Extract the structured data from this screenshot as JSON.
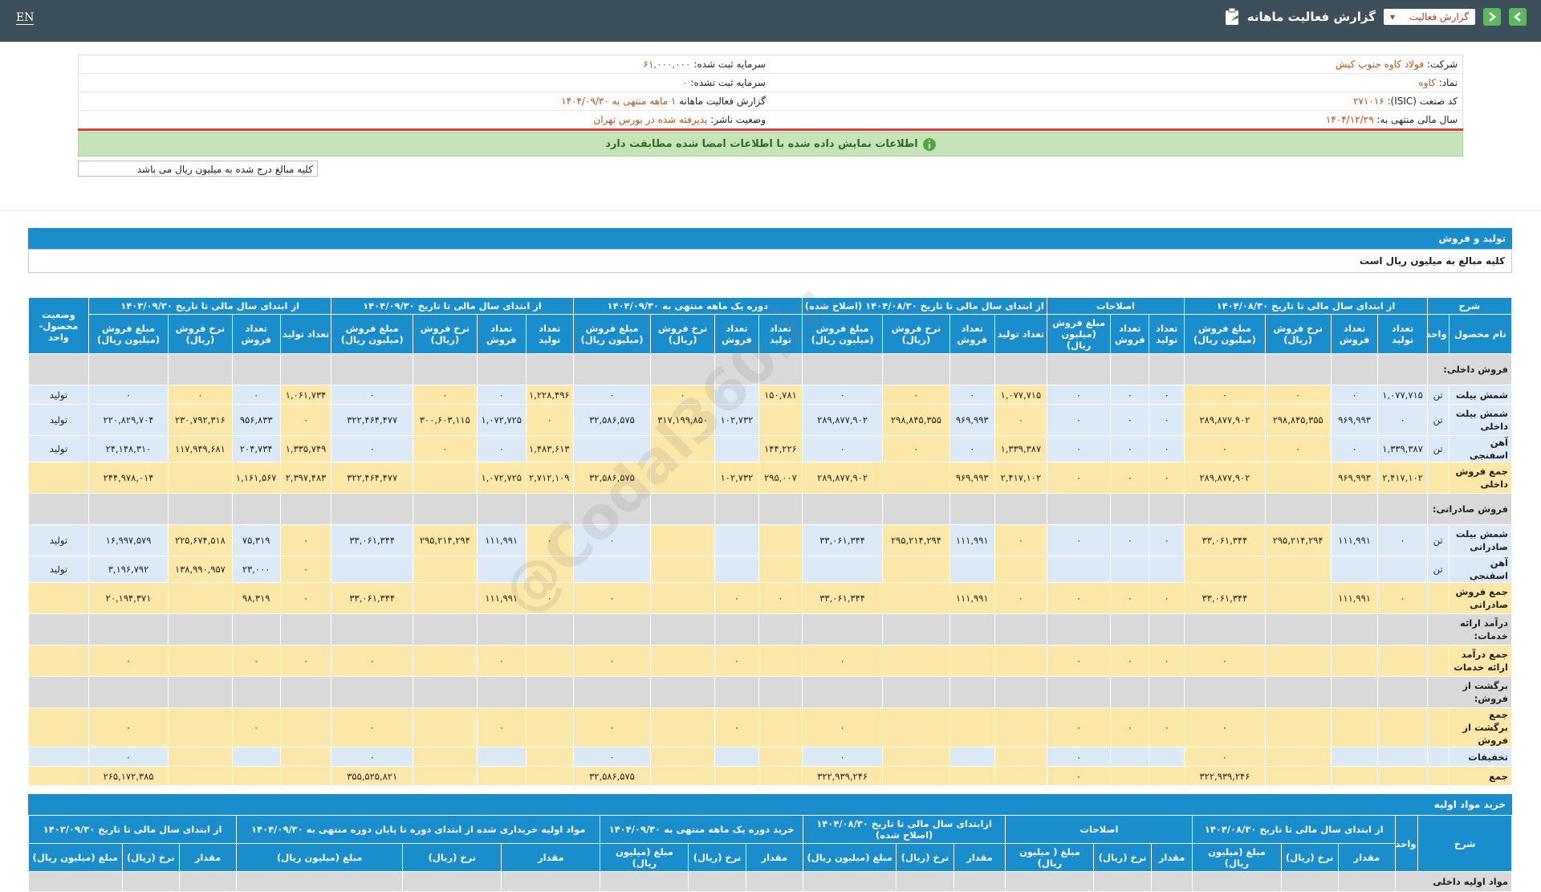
{
  "header": {
    "lang": "EN",
    "title": "گزارش فعالیت ماهانه",
    "report_select": "گزارش فعالیت"
  },
  "info": {
    "rows": [
      [
        "شرکت:",
        "فولاد کاوه جنوب کیش",
        "سرمایه ثبت شده:",
        "۶۱,۰۰۰,۰۰۰"
      ],
      [
        "نماد:",
        "کاوه",
        "سرمایه ثبت نشده:",
        "۰"
      ],
      [
        "کد صنعت (ISIC):",
        "۲۷۱۰۱۶",
        "گزارش فعالیت ماهانه",
        "۱ ماهه منتهی به ۱۴۰۴/۰۹/۳۰"
      ],
      [
        "سال مالی منتهی به:",
        "۱۴۰۴/۱۲/۲۹",
        "وضعیت ناشر:",
        "پذیرفته شده در بورس تهران"
      ]
    ]
  },
  "banner": "اطلاعات نمایش داده شده با اطلاعات امضا شده مطابقت دارد",
  "unit_note": "کلیه مبالغ درج شده به میلیون ریال می باشد",
  "watermark": "@Codal360.ir",
  "production": {
    "title": "تولید و فروش",
    "subtitle": "کلیه مبالغ به میلیون ریال است",
    "description_header": "شرح",
    "name_header": "نام محصول",
    "unit_header": "واحد",
    "status_header": "وضعیت محصول-واحد",
    "groups": [
      {
        "label": "از ابتدای سال مالی تا تاریخ ۱۴۰۴/۰۸/۳۰",
        "columns": [
          "تعداد تولید",
          "تعداد فروش",
          "نرخ فروش (ریال)",
          "مبلغ فروش (میلیون ریال)"
        ]
      },
      {
        "label": "اصلاحات",
        "columns": [
          "تعداد تولید",
          "تعداد فروش",
          "مبلغ فروش (میلیون ریال)"
        ]
      },
      {
        "label": "از ابتدای سال مالی تا تاریخ ۱۴۰۴/۰۸/۳۰ (اصلاح شده)",
        "columns": [
          "تعداد تولید",
          "تعداد فروش",
          "نرخ فروش (ریال)",
          "مبلغ فروش (میلیون ریال)"
        ]
      },
      {
        "label": "دوره یک ماهه منتهی به ۱۴۰۴/۰۹/۳۰",
        "columns": [
          "تعداد تولید",
          "تعداد فروش",
          "نرخ فروش (ریال)",
          "مبلغ فروش (میلیون ریال)"
        ]
      },
      {
        "label": "از ابتدای سال مالی تا تاریخ ۱۴۰۴/۰۹/۳۰",
        "columns": [
          "تعداد تولید",
          "تعداد فروش",
          "نرخ فروش (ریال)",
          "مبلغ فروش (میلیون ریال)"
        ]
      },
      {
        "label": "از ابتدای سال مالی تا تاریخ ۱۴۰۳/۰۹/۳۰",
        "columns": [
          "تعداد تولید",
          "تعداد فروش",
          "نرخ فروش (ریال)",
          "مبلغ فروش (میلیون ریال)"
        ]
      }
    ],
    "rows": [
      {
        "kind": "section",
        "label": "فروش داخلی:"
      },
      {
        "kind": "item",
        "cells": [
          "شمش بیلت",
          "تن",
          "۱,۰۷۷,۷۱۵",
          "۰",
          "۰",
          "۰",
          "۰",
          "۰",
          "۰",
          "۱,۰۷۷,۷۱۵",
          "۰",
          "۰",
          "۰",
          "۱۵۰,۷۸۱",
          null,
          "۰",
          "۰",
          "۱,۲۲۸,۴۹۶",
          "۰",
          "۰",
          "۰",
          "۱,۰۶۱,۷۳۴",
          "۰",
          "۰",
          "۰",
          "تولید"
        ]
      },
      {
        "kind": "item",
        "cells": [
          "شمش بیلت داخلی",
          "تن",
          "۰",
          "۹۶۹,۹۹۳",
          "۲۹۸,۸۴۵,۳۵۵",
          "۲۸۹,۸۷۷,۹۰۲",
          "۰",
          "۰",
          "۰",
          "۰",
          "۹۶۹,۹۹۳",
          "۲۹۸,۸۴۵,۳۵۵",
          "۲۸۹,۸۷۷,۹۰۲",
          null,
          "۱۰۲,۷۳۲",
          "۳۱۷,۱۹۹,۸۵۰",
          "۳۲,۵۸۶,۵۷۵",
          "۰",
          "۱,۰۷۲,۷۲۵",
          "۳۰۰,۶۰۳,۱۱۵",
          "۳۲۲,۴۶۴,۴۷۷",
          "۰",
          "۹۵۶,۸۳۳",
          "۲۳۰,۷۹۲,۳۱۶",
          "۲۲۰,۸۲۹,۷۰۴",
          "تولید"
        ]
      },
      {
        "kind": "item",
        "cells": [
          "آهن اسفنجی",
          "تن",
          "۱,۳۳۹,۳۸۷",
          "۰",
          "۰",
          "۰",
          "۰",
          "۰",
          "۰",
          "۱,۳۳۹,۳۸۷",
          "۰",
          "۰",
          "۰",
          "۱۴۴,۲۲۶",
          null,
          null,
          null,
          "۱,۴۸۳,۶۱۳",
          "۰",
          "۰",
          "۰",
          "۱,۳۳۵,۷۴۹",
          "۲۰۴,۷۳۴",
          "۱۱۷,۹۴۹,۶۸۱",
          "۲۴,۱۴۸,۳۱۰",
          "تولید"
        ]
      },
      {
        "kind": "total",
        "cells": [
          "جمع فروش داخلی",
          null,
          "۲,۴۱۷,۱۰۲",
          "۹۶۹,۹۹۳",
          null,
          "۲۸۹,۸۷۷,۹۰۲",
          "۰",
          "۰",
          "۰",
          "۲,۴۱۷,۱۰۲",
          "۹۶۹,۹۹۳",
          null,
          "۲۸۹,۸۷۷,۹۰۲",
          "۲۹۵,۰۰۷",
          "۱۰۲,۷۳۲",
          null,
          "۳۲,۵۸۶,۵۷۵",
          "۲,۷۱۲,۱۰۹",
          "۱,۰۷۲,۷۲۵",
          null,
          "۳۲۲,۴۶۴,۴۷۷",
          "۲,۳۹۷,۴۸۳",
          "۱,۱۶۱,۵۶۷",
          null,
          "۲۴۴,۹۷۸,۰۱۴",
          null
        ]
      },
      {
        "kind": "section",
        "label": "فروش صادراتی:"
      },
      {
        "kind": "item",
        "cells": [
          "شمش بیلت صادراتی",
          "تن",
          "۰",
          "۱۱۱,۹۹۱",
          "۲۹۵,۲۱۴,۲۹۴",
          "۳۳,۰۶۱,۳۴۴",
          "۰",
          "۰",
          "۰",
          "۰",
          "۱۱۱,۹۹۱",
          "۲۹۵,۲۱۴,۲۹۴",
          "۳۳,۰۶۱,۳۴۴",
          null,
          null,
          null,
          "۰",
          "۰",
          "۱۱۱,۹۹۱",
          "۲۹۵,۲۱۴,۲۹۴",
          "۳۳,۰۶۱,۳۴۴",
          "۰",
          "۷۵,۳۱۹",
          "۲۲۵,۶۷۴,۵۱۸",
          "۱۶,۹۹۷,۵۷۹",
          "تولید"
        ]
      },
      {
        "kind": "item",
        "cells": [
          "آهن اسفنجی",
          "تن",
          null,
          null,
          null,
          null,
          null,
          null,
          null,
          null,
          null,
          null,
          null,
          null,
          null,
          null,
          null,
          null,
          null,
          null,
          null,
          "۰",
          "۲۳,۰۰۰",
          "۱۳۸,۹۹۰,۹۵۷",
          "۳,۱۹۶,۷۹۲",
          "تولید"
        ]
      },
      {
        "kind": "total",
        "cells": [
          "جمع فروش صادراتی",
          null,
          "۰",
          "۱۱۱,۹۹۱",
          null,
          "۳۳,۰۶۱,۳۴۴",
          "۰",
          "۰",
          "۰",
          "۰",
          "۱۱۱,۹۹۱",
          null,
          "۳۳,۰۶۱,۳۴۴",
          "۰",
          "۰",
          null,
          "۰",
          "۰",
          "۱۱۱,۹۹۱",
          null,
          "۳۳,۰۶۱,۳۴۴",
          "۰",
          "۹۸,۳۱۹",
          null,
          "۲۰,۱۹۴,۳۷۱",
          null
        ]
      },
      {
        "kind": "section",
        "label": "درآمد ارائه خدمات:"
      },
      {
        "kind": "total",
        "cells": [
          "جمع درآمد ارائه خدمات",
          null,
          null,
          null,
          null,
          "۰",
          "۰",
          "۰",
          "۰",
          null,
          null,
          null,
          "۰",
          null,
          "۰",
          null,
          "۰",
          null,
          "۰",
          null,
          "۰",
          "۰",
          "۰",
          null,
          "۰",
          null
        ]
      },
      {
        "kind": "section",
        "label": "برگشت از فروش:"
      },
      {
        "kind": "total",
        "cells": [
          "جمع برگشت از فروش",
          null,
          null,
          null,
          null,
          "۰",
          "۰",
          "۰",
          "۰",
          null,
          null,
          null,
          "۰",
          null,
          "۰",
          null,
          "۰",
          null,
          "۰",
          null,
          "۰",
          null,
          "۰",
          null,
          "۰",
          null
        ]
      },
      {
        "kind": "item",
        "cells": [
          "تخفیفات",
          null,
          null,
          null,
          null,
          "۰",
          null,
          null,
          "۰",
          null,
          null,
          null,
          "۰",
          null,
          null,
          null,
          "۰",
          null,
          null,
          null,
          "۰",
          null,
          null,
          null,
          "۰",
          null
        ]
      },
      {
        "kind": "total",
        "cells": [
          "جمع",
          null,
          null,
          null,
          null,
          "۳۲۲,۹۳۹,۲۴۶",
          null,
          null,
          "۰",
          null,
          null,
          null,
          "۳۲۲,۹۳۹,۲۴۶",
          null,
          null,
          null,
          "۳۲,۵۸۶,۵۷۵",
          null,
          null,
          null,
          "۳۵۵,۵۲۵,۸۲۱",
          null,
          null,
          null,
          "۲۶۵,۱۷۲,۳۸۵",
          null
        ]
      }
    ]
  },
  "materials": {
    "title": "خرید مواد اولیه",
    "description_header": "شرح",
    "unit_header": "واحد",
    "groups": [
      {
        "label": "از ابتدای سال مالی تا تاریخ ۱۴۰۴/۰۸/۳۰",
        "columns": [
          "مقدار",
          "نرخ (ریال)",
          "مبلغ (میلیون ریال)"
        ]
      },
      {
        "label": "اصلاحات",
        "columns": [
          "مقدار",
          "نرخ (ریال)",
          "مبلغ ( میلیون ریال)"
        ]
      },
      {
        "label": "ازابتدای سال مالی تا تاریخ ۱۴۰۴/۰۸/۳۰ (اصلاح شده)",
        "columns": [
          "مقدار",
          "نرخ (ریال)",
          "مبلغ (میلیون ریال)"
        ]
      },
      {
        "label": "خرید دوره یک ماهه منتهی به ۱۴۰۴/۰۹/۳۰",
        "columns": [
          "مقدار",
          "نرخ (ریال)",
          "مبلغ (میلیون ریال)"
        ]
      },
      {
        "label": "مواد اولیه خریداری شده از ابتدای دوره تا پایان دوره منتهی به ۱۴۰۴/۰۹/۳۰",
        "columns": [
          "مقدار",
          "نرخ (ریال)",
          "مبلغ (میلیون ریال)"
        ]
      },
      {
        "label": "از ابتدای سال مالی تا تاریخ ۱۴۰۳/۰۹/۳۰",
        "columns": [
          "مقدار",
          "نرخ (ریال)",
          "مبلغ (میلیون ریال)"
        ]
      }
    ],
    "rows": [
      {
        "kind": "section",
        "label": "مواد اولیه داخلی"
      }
    ]
  }
}
